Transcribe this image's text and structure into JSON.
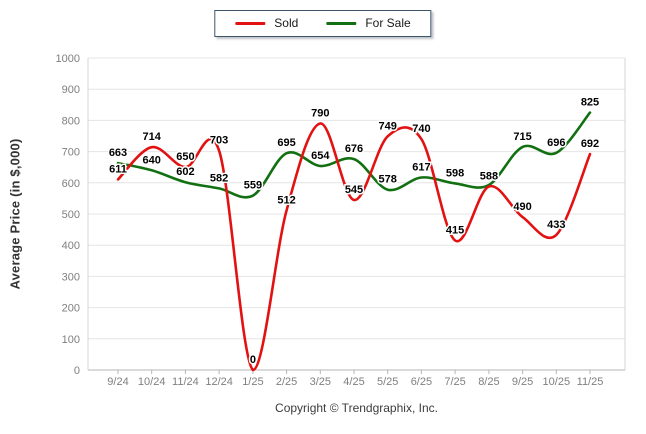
{
  "y_axis_title": "Average Price (in $,000)",
  "footer": {
    "copyright": "Copyright © Trendgraphix, Inc."
  },
  "legend": {
    "position": "top-center"
  },
  "colors": {
    "sold": "#e31212",
    "for_sale": "#127012",
    "gridline": "#e4e4e4",
    "axis_line": "#b4b4b4",
    "tick_text": "#7f7f7f",
    "data_label": "#000000"
  },
  "chart_data": {
    "type": "line",
    "title": "",
    "xlabel": "",
    "ylabel": "Average Price (in $,000)",
    "ylim": [
      0,
      1000
    ],
    "ytick_step": 100,
    "grid": true,
    "legend_position": "top-center",
    "show_data_labels": true,
    "categories": [
      "9/24",
      "10/24",
      "11/24",
      "12/24",
      "1/25",
      "2/25",
      "3/25",
      "4/25",
      "5/25",
      "6/25",
      "7/25",
      "8/25",
      "9/25",
      "10/25",
      "11/25"
    ],
    "series": [
      {
        "name": "For Sale",
        "color": "#127012",
        "values": [
          663,
          640,
          602,
          582,
          559,
          695,
          654,
          676,
          578,
          617,
          598,
          593,
          715,
          696,
          825
        ]
      },
      {
        "name": "Sold",
        "color": "#e31212",
        "values": [
          611,
          714,
          650,
          703,
          0,
          512,
          790,
          545,
          749,
          740,
          415,
          588,
          490,
          433,
          692
        ]
      }
    ]
  }
}
